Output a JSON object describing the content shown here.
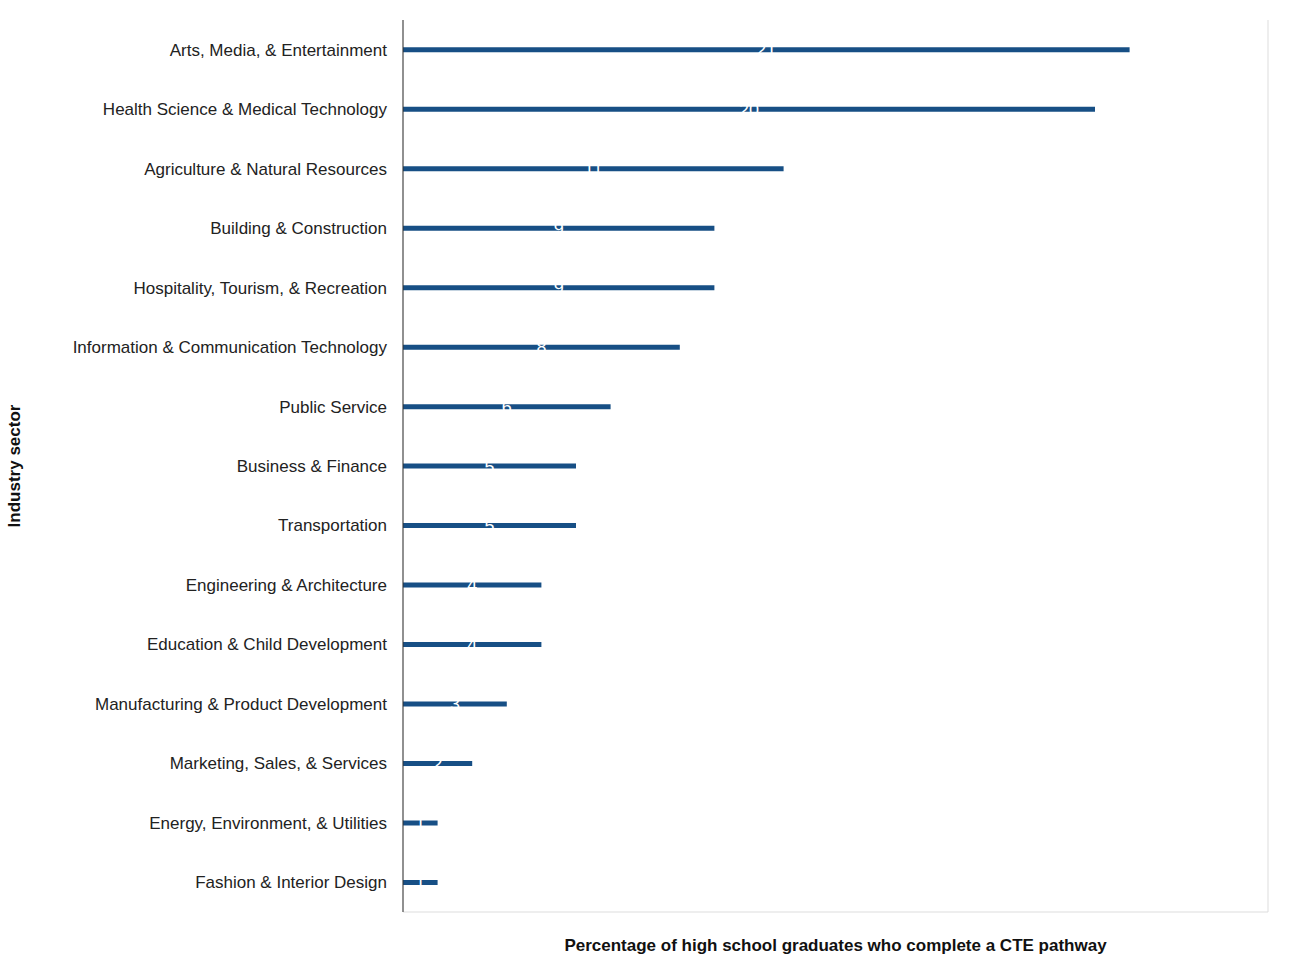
{
  "chart_data": {
    "type": "bar",
    "orientation": "horizontal",
    "categories": [
      "Arts, Media, & Entertainment",
      "Health Science & Medical Technology",
      "Agriculture & Natural Resources",
      "Building & Construction",
      "Hospitality, Tourism, & Recreation",
      "Information & Communication Technology",
      "Public Service",
      "Business & Finance",
      "Transportation",
      "Engineering & Architecture",
      "Education & Child Development",
      "Manufacturing & Product Development",
      "Marketing, Sales, & Services",
      "Energy, Environment, & Utilities",
      "Fashion & Interior Design"
    ],
    "values": [
      21,
      20,
      11,
      9,
      9,
      8,
      6,
      5,
      5,
      4,
      4,
      3,
      2,
      1,
      1
    ],
    "color": "#174f85",
    "xlabel": "Percentage of high school graduates who complete a CTE pathway",
    "ylabel": "Industry sector",
    "xlim": [
      0,
      25
    ],
    "xticks": [
      0,
      5,
      10,
      15,
      20,
      25
    ],
    "grid": true,
    "data_labels": true,
    "tick_labels": "y"
  }
}
